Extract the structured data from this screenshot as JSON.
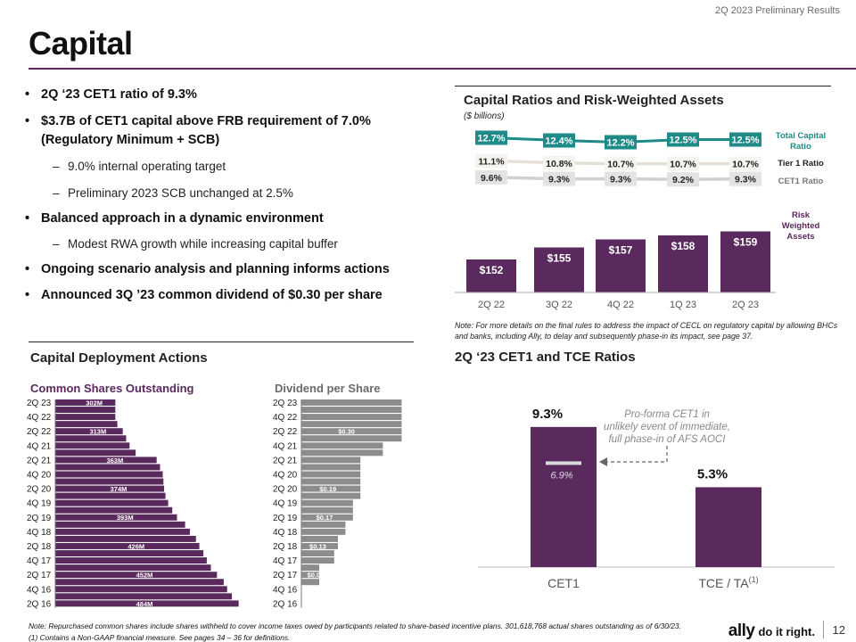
{
  "header": {
    "period_label": "2Q 2023 Preliminary Results"
  },
  "page": {
    "title": "Capital",
    "page_number": "12"
  },
  "colors": {
    "purple": "#5a2a5e",
    "teal": "#1f8a87",
    "gray_bar": "#8c8c8c",
    "label_gray": "#cfcfcf"
  },
  "bullets": [
    {
      "level": 1,
      "text": "2Q ‘23 CET1 ratio of 9.3%"
    },
    {
      "level": 1,
      "text": "$3.7B of CET1 capital above FRB requirement of 7.0% (Regulatory Minimum + SCB)"
    },
    {
      "level": 2,
      "text": "9.0% internal operating target"
    },
    {
      "level": 2,
      "text": "Preliminary 2023 SCB unchanged at 2.5%"
    },
    {
      "level": 1,
      "text": "Balanced approach in a dynamic environment"
    },
    {
      "level": 2,
      "text": "Modest RWA growth while increasing capital buffer"
    },
    {
      "level": 1,
      "text": "Ongoing scenario analysis and planning informs actions"
    },
    {
      "level": 1,
      "text": "Announced 3Q ’23 common dividend of $0.30 per share"
    }
  ],
  "capital_ratios": {
    "title": "Capital Ratios and Risk-Weighted Assets",
    "units": "($ billions)",
    "note": "Note: For more details on the final rules to address the impact of CECL on regulatory capital by allowing BHCs and banks, including Ally, to delay and subsequently phase-in its impact, see page 37."
  },
  "deployment": {
    "title": "Capital Deployment Actions",
    "shares_title": "Common Shares Outstanding",
    "dividend_title": "Dividend per Share"
  },
  "cet1_tce": {
    "title": "2Q ‘23 CET1 and TCE Ratios"
  },
  "footnotes": {
    "note": "Note: Repurchased common shares include shares withheld to cover income taxes owed by participants related to share-based incentive plans. 301,618,768 actual shares outstanding as of 6/30/23.",
    "fn1": "(1) Contains a Non-GAAP financial measure. See pages 34 – 36  for definitions."
  },
  "logo": {
    "brand": "ally",
    "tagline": "do it right."
  },
  "chart_data": [
    {
      "type": "bar",
      "title": "Capital Ratios and Risk-Weighted Assets",
      "units": "($ billions)",
      "categories": [
        "2Q 22",
        "3Q 22",
        "4Q 22",
        "1Q 23",
        "2Q 23"
      ],
      "bar_series": {
        "name": "Risk Weighted Assets",
        "values": [
          152,
          155,
          157,
          158,
          159
        ],
        "labels": [
          "$152",
          "$155",
          "$157",
          "$158",
          "$159"
        ]
      },
      "line_series": [
        {
          "name": "Total Capital Ratio",
          "values": [
            12.7,
            12.4,
            12.2,
            12.5,
            12.5
          ],
          "labels": [
            "12.7%",
            "12.4%",
            "12.2%",
            "12.5%",
            "12.5%"
          ]
        },
        {
          "name": "Tier 1 Ratio",
          "values": [
            11.1,
            10.8,
            10.7,
            10.7,
            10.7
          ],
          "labels": [
            "11.1%",
            "10.8%",
            "10.7%",
            "10.7%",
            "10.7%"
          ]
        },
        {
          "name": "CET1 Ratio",
          "values": [
            9.6,
            9.3,
            9.3,
            9.2,
            9.3
          ],
          "labels": [
            "9.6%",
            "9.3%",
            "9.3%",
            "9.2%",
            "9.3%"
          ]
        }
      ],
      "legend": [
        "Total Capital Ratio",
        "Tier 1 Ratio",
        "CET1 Ratio",
        "Risk Weighted Assets"
      ]
    },
    {
      "type": "bar",
      "orientation": "horizontal",
      "title": "Common Shares Outstanding",
      "unit": "M",
      "categories": [
        "2Q 23",
        "1Q 23",
        "4Q 22",
        "3Q 22",
        "2Q 22",
        "1Q 22",
        "4Q 21",
        "3Q 21",
        "2Q 21",
        "1Q 21",
        "4Q 20",
        "3Q 20",
        "2Q 20",
        "1Q 20",
        "4Q 19",
        "3Q 19",
        "2Q 19",
        "1Q 19",
        "4Q 18",
        "3Q 18",
        "2Q 18",
        "1Q 18",
        "4Q 17",
        "3Q 17",
        "2Q 17",
        "1Q 17",
        "4Q 16",
        "3Q 16",
        "2Q 16"
      ],
      "tick_labels": [
        "2Q 23",
        "4Q 22",
        "2Q 22",
        "4Q 21",
        "2Q 21",
        "4Q 20",
        "2Q 20",
        "4Q 19",
        "2Q 19",
        "4Q 18",
        "2Q 18",
        "4Q 17",
        "2Q 17",
        "4Q 16",
        "2Q 16"
      ],
      "values": [
        302,
        302,
        302,
        305,
        313,
        318,
        323,
        332,
        363,
        368,
        372,
        373,
        374,
        376,
        380,
        386,
        393,
        405,
        412,
        421,
        426,
        432,
        437,
        443,
        452,
        462,
        467,
        474,
        484
      ],
      "labels": [
        "302M",
        "",
        "",
        "",
        "313M",
        "",
        "",
        "",
        "363M",
        "",
        "",
        "",
        "374M",
        "",
        "",
        "",
        "393M",
        "",
        "",
        "",
        "426M",
        "",
        "",
        "",
        "452M",
        "",
        "",
        "",
        "484M"
      ]
    },
    {
      "type": "bar",
      "orientation": "horizontal",
      "title": "Dividend per Share",
      "categories": [
        "2Q 23",
        "1Q 23",
        "4Q 22",
        "3Q 22",
        "2Q 22",
        "1Q 22",
        "4Q 21",
        "3Q 21",
        "2Q 21",
        "1Q 21",
        "4Q 20",
        "3Q 20",
        "2Q 20",
        "1Q 20",
        "4Q 19",
        "3Q 19",
        "2Q 19",
        "1Q 19",
        "4Q 18",
        "3Q 18",
        "2Q 18",
        "1Q 18",
        "4Q 17",
        "3Q 17",
        "2Q 17",
        "1Q 17",
        "4Q 16",
        "3Q 16",
        "2Q 16"
      ],
      "tick_labels": [
        "2Q 23",
        "4Q 22",
        "2Q 22",
        "4Q 21",
        "2Q 21",
        "4Q 20",
        "2Q 20",
        "4Q 19",
        "2Q 19",
        "4Q 18",
        "2Q 18",
        "4Q 17",
        "2Q 17",
        "4Q 16",
        "2Q 16"
      ],
      "values": [
        0.3,
        0.3,
        0.3,
        0.3,
        0.3,
        0.3,
        0.25,
        0.25,
        0.19,
        0.19,
        0.19,
        0.19,
        0.19,
        0.19,
        0.17,
        0.17,
        0.17,
        0.15,
        0.15,
        0.13,
        0.13,
        0.12,
        0.12,
        0.08,
        0.08,
        0.08,
        0,
        0,
        0
      ],
      "labels": [
        "",
        "",
        "",
        "",
        "$0.30",
        "",
        "",
        "",
        "",
        "",
        "",
        "",
        "$0.19",
        "",
        "",
        "",
        "$0.17",
        "",
        "",
        "",
        "$0.13",
        "",
        "",
        "",
        "$0.08",
        "",
        "",
        "",
        ""
      ]
    },
    {
      "type": "bar",
      "title": "2Q ‘23 CET1 and TCE Ratios",
      "categories": [
        "CET1",
        "TCE / TA"
      ],
      "category_superscript": [
        "",
        "(1)"
      ],
      "values": [
        9.3,
        5.3
      ],
      "labels": [
        "9.3%",
        "5.3%"
      ],
      "proforma_cet1": {
        "value": 6.9,
        "label": "6.9%"
      },
      "annotation": "Pro-forma CET1 in unlikely event of immediate, full phase-in of AFS AOCI"
    }
  ]
}
